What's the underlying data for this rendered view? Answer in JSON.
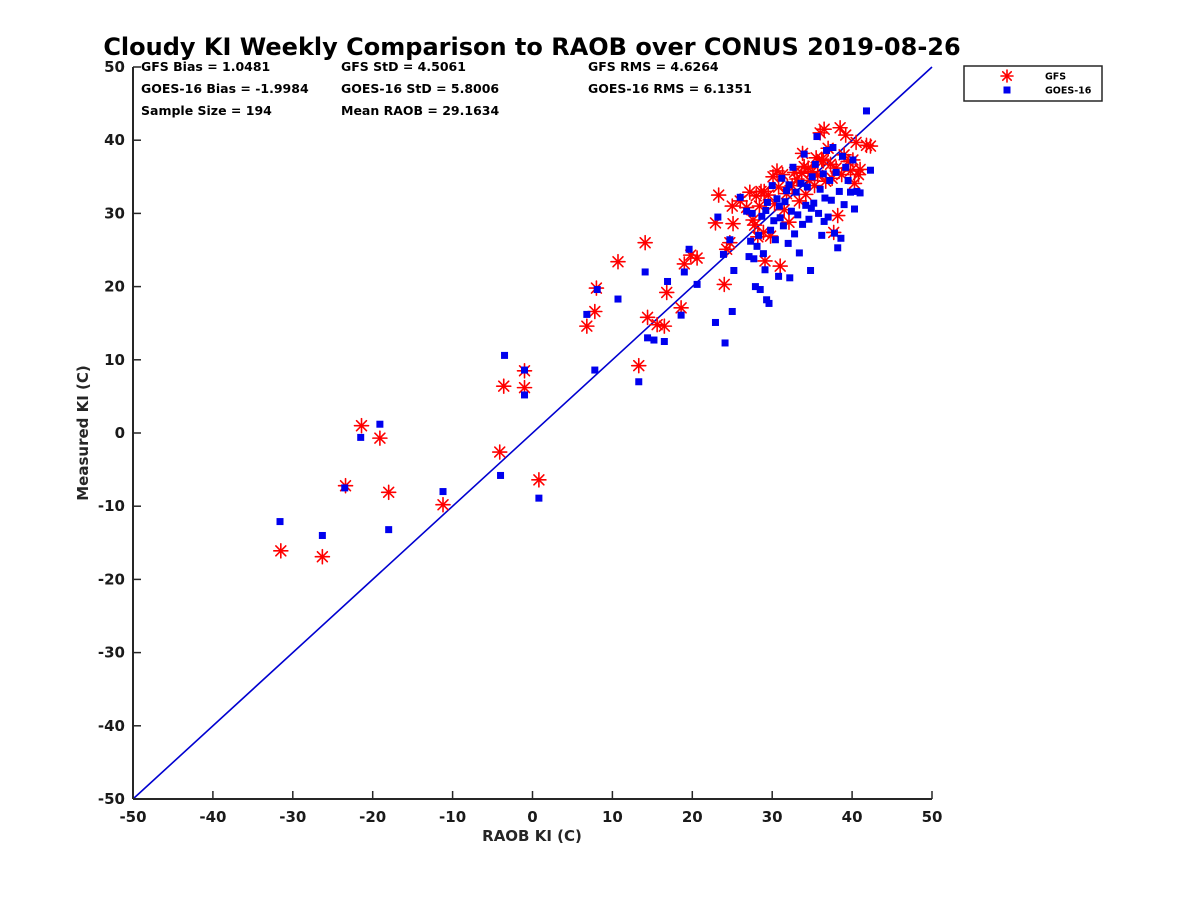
{
  "chart_data": {
    "type": "scatter",
    "title": "Cloudy KI Weekly Comparison to RAOB over CONUS 2019-08-26",
    "xlabel": "RAOB KI (C)",
    "ylabel": "Measured KI (C)",
    "xlim": [
      -50,
      50
    ],
    "ylim": [
      -50,
      50
    ],
    "xticks": [
      "-50",
      "-40",
      "-30",
      "-20",
      "-10",
      "0",
      "10",
      "20",
      "30",
      "40",
      "50"
    ],
    "yticks": [
      "-50",
      "-40",
      "-30",
      "-20",
      "-10",
      "0",
      "10",
      "20",
      "30",
      "40",
      "50"
    ],
    "grid": false,
    "legend_position": "outside-top-right",
    "reference_line": {
      "from": [
        -50,
        -50
      ],
      "to": [
        50,
        50
      ],
      "color": "#0000d0"
    },
    "stats": [
      [
        "GFS Bias = 1.0481",
        "GFS StD = 4.5061",
        "GFS RMS = 4.6264"
      ],
      [
        "GOES-16 Bias = -1.9984",
        "GOES-16 StD = 5.8006",
        "GOES-16 RMS = 6.1351"
      ],
      [
        "Sample Size = 194",
        "Mean RAOB = 29.1634"
      ]
    ],
    "series": [
      {
        "name": "GFS",
        "marker": "asterisk",
        "color": "#ff0000",
        "points": [
          [
            -31.5,
            -16.1
          ],
          [
            -26.3,
            -16.9
          ],
          [
            -23.4,
            -7.2
          ],
          [
            -21.4,
            1.0
          ],
          [
            -19.1,
            -0.7
          ],
          [
            -18.0,
            -8.1
          ],
          [
            -11.2,
            -9.8
          ],
          [
            -4.1,
            -2.6
          ],
          [
            -3.6,
            6.4
          ],
          [
            -1.0,
            6.2
          ],
          [
            -1.0,
            8.5
          ],
          [
            0.8,
            -6.4
          ],
          [
            6.8,
            14.6
          ],
          [
            7.8,
            16.6
          ],
          [
            8.0,
            19.8
          ],
          [
            10.7,
            23.4
          ],
          [
            13.3,
            9.2
          ],
          [
            14.1,
            26.0
          ],
          [
            14.4,
            15.8
          ],
          [
            15.6,
            14.8
          ],
          [
            16.5,
            14.6
          ],
          [
            16.8,
            19.2
          ],
          [
            18.6,
            17.1
          ],
          [
            19.0,
            23.1
          ],
          [
            19.8,
            24.3
          ],
          [
            20.6,
            23.9
          ],
          [
            22.9,
            28.7
          ],
          [
            23.3,
            32.5
          ],
          [
            24.0,
            20.3
          ],
          [
            24.3,
            25.1
          ],
          [
            24.7,
            26.0
          ],
          [
            25.0,
            31.0
          ],
          [
            25.1,
            28.6
          ],
          [
            26.0,
            31.7
          ],
          [
            26.8,
            30.8
          ],
          [
            27.2,
            32.9
          ],
          [
            27.6,
            29.1
          ],
          [
            27.8,
            28.4
          ],
          [
            28.0,
            32.4
          ],
          [
            28.2,
            26.8
          ],
          [
            28.4,
            31.0
          ],
          [
            28.9,
            27.4
          ],
          [
            29.0,
            33.0
          ],
          [
            29.1,
            23.5
          ],
          [
            29.5,
            32.5
          ],
          [
            29.8,
            26.9
          ],
          [
            30.1,
            35.0
          ],
          [
            30.3,
            31.3
          ],
          [
            30.6,
            35.8
          ],
          [
            30.8,
            33.6
          ],
          [
            31.0,
            22.8
          ],
          [
            31.3,
            35.3
          ],
          [
            31.5,
            30.5
          ],
          [
            31.8,
            32.7
          ],
          [
            32.1,
            28.8
          ],
          [
            32.5,
            33.8
          ],
          [
            32.8,
            35.6
          ],
          [
            33.1,
            34.7
          ],
          [
            33.4,
            31.7
          ],
          [
            33.7,
            35.5
          ],
          [
            34.0,
            36.4
          ],
          [
            34.2,
            32.6
          ],
          [
            34.5,
            36.2
          ],
          [
            34.7,
            34.5
          ],
          [
            35.0,
            35.7
          ],
          [
            35.3,
            33.8
          ],
          [
            35.5,
            37.6
          ],
          [
            35.7,
            35.2
          ],
          [
            36.0,
            41.0
          ],
          [
            36.2,
            37.4
          ],
          [
            36.5,
            41.5
          ],
          [
            36.7,
            34.4
          ],
          [
            37.0,
            38.9
          ],
          [
            37.3,
            36.7
          ],
          [
            37.5,
            34.8
          ],
          [
            37.7,
            27.4
          ],
          [
            38.0,
            36.2
          ],
          [
            38.2,
            29.7
          ],
          [
            38.5,
            41.7
          ],
          [
            38.7,
            35.3
          ],
          [
            39.0,
            38.0
          ],
          [
            39.2,
            40.7
          ],
          [
            39.5,
            37.1
          ],
          [
            39.8,
            35.8
          ],
          [
            40.1,
            37.3
          ],
          [
            40.3,
            34.1
          ],
          [
            40.5,
            39.7
          ],
          [
            40.8,
            35.3
          ],
          [
            41.0,
            36.0
          ],
          [
            41.8,
            39.3
          ],
          [
            42.3,
            39.2
          ],
          [
            36.4,
            37.2
          ],
          [
            33.8,
            38.2
          ],
          [
            28.6,
            33.0
          ]
        ]
      },
      {
        "name": "GOES-16",
        "marker": "square",
        "color": "#0000ee",
        "points": [
          [
            -31.6,
            -12.1
          ],
          [
            -26.3,
            -14.0
          ],
          [
            -23.5,
            -7.5
          ],
          [
            -21.5,
            -0.6
          ],
          [
            -19.1,
            1.2
          ],
          [
            -18.0,
            -13.2
          ],
          [
            -11.2,
            -8.0
          ],
          [
            -4.0,
            -5.8
          ],
          [
            -3.5,
            10.6
          ],
          [
            -1.0,
            5.2
          ],
          [
            -1.0,
            8.6
          ],
          [
            0.8,
            -8.9
          ],
          [
            6.8,
            16.2
          ],
          [
            7.8,
            8.6
          ],
          [
            8.1,
            19.6
          ],
          [
            10.7,
            18.3
          ],
          [
            13.3,
            7.0
          ],
          [
            14.1,
            22.0
          ],
          [
            14.4,
            13.0
          ],
          [
            15.2,
            12.7
          ],
          [
            16.5,
            12.5
          ],
          [
            16.9,
            20.7
          ],
          [
            18.6,
            16.1
          ],
          [
            19.0,
            22.0
          ],
          [
            19.6,
            25.1
          ],
          [
            20.6,
            20.3
          ],
          [
            22.9,
            15.1
          ],
          [
            23.2,
            29.5
          ],
          [
            23.9,
            24.4
          ],
          [
            24.1,
            12.3
          ],
          [
            24.7,
            26.4
          ],
          [
            25.0,
            16.6
          ],
          [
            25.2,
            22.2
          ],
          [
            26.0,
            32.2
          ],
          [
            26.8,
            30.3
          ],
          [
            27.1,
            24.1
          ],
          [
            27.3,
            26.2
          ],
          [
            27.5,
            30.0
          ],
          [
            27.7,
            23.8
          ],
          [
            27.9,
            20.0
          ],
          [
            28.1,
            25.5
          ],
          [
            28.3,
            27.0
          ],
          [
            28.5,
            19.6
          ],
          [
            28.7,
            29.6
          ],
          [
            28.9,
            24.5
          ],
          [
            29.1,
            22.3
          ],
          [
            29.3,
            18.2
          ],
          [
            29.4,
            31.5
          ],
          [
            29.6,
            17.7
          ],
          [
            29.8,
            27.7
          ],
          [
            30.0,
            33.8
          ],
          [
            30.2,
            29.0
          ],
          [
            30.4,
            26.4
          ],
          [
            30.6,
            32.0
          ],
          [
            30.8,
            21.4
          ],
          [
            31.0,
            29.4
          ],
          [
            31.2,
            34.8
          ],
          [
            31.4,
            28.3
          ],
          [
            31.6,
            31.6
          ],
          [
            31.8,
            33.1
          ],
          [
            32.0,
            25.9
          ],
          [
            32.2,
            21.2
          ],
          [
            32.4,
            30.3
          ],
          [
            32.6,
            36.3
          ],
          [
            32.8,
            27.2
          ],
          [
            33.0,
            32.9
          ],
          [
            33.2,
            29.8
          ],
          [
            33.4,
            24.6
          ],
          [
            33.6,
            34.1
          ],
          [
            33.8,
            28.5
          ],
          [
            34.0,
            38.1
          ],
          [
            34.2,
            31.1
          ],
          [
            34.4,
            33.6
          ],
          [
            34.6,
            29.2
          ],
          [
            34.8,
            22.2
          ],
          [
            35.0,
            35.0
          ],
          [
            35.2,
            31.4
          ],
          [
            35.4,
            36.7
          ],
          [
            35.6,
            40.5
          ],
          [
            35.8,
            30.0
          ],
          [
            36.0,
            33.3
          ],
          [
            36.2,
            27.0
          ],
          [
            36.4,
            35.4
          ],
          [
            36.6,
            32.1
          ],
          [
            36.8,
            38.6
          ],
          [
            37.0,
            29.5
          ],
          [
            37.2,
            34.5
          ],
          [
            37.4,
            31.8
          ],
          [
            37.6,
            39.0
          ],
          [
            37.8,
            27.3
          ],
          [
            38.0,
            35.6
          ],
          [
            38.2,
            25.3
          ],
          [
            38.4,
            33.0
          ],
          [
            38.6,
            26.6
          ],
          [
            38.8,
            37.8
          ],
          [
            39.0,
            31.2
          ],
          [
            39.2,
            36.3
          ],
          [
            39.5,
            34.5
          ],
          [
            39.8,
            32.9
          ],
          [
            40.1,
            37.3
          ],
          [
            40.3,
            30.6
          ],
          [
            40.6,
            33.0
          ],
          [
            41.0,
            32.8
          ],
          [
            41.8,
            44.0
          ],
          [
            42.3,
            35.9
          ],
          [
            30.9,
            31.0
          ],
          [
            32.1,
            33.9
          ],
          [
            34.9,
            30.7
          ],
          [
            36.5,
            28.9
          ],
          [
            29.2,
            30.4
          ]
        ]
      }
    ]
  }
}
